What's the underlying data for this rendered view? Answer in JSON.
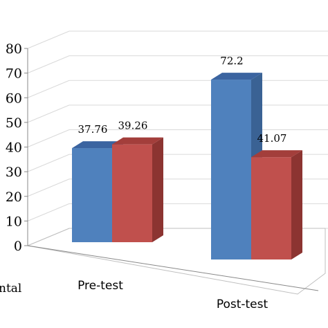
{
  "chart_data": {
    "type": "bar",
    "style": "3d-clustered-column",
    "categories": [
      "Pre-test",
      "Post-test"
    ],
    "series": [
      {
        "values": [
          37.76,
          72.2
        ],
        "color": "#4f81bd",
        "side_color": "#3a6294",
        "top_color": "#3b64a0"
      },
      {
        "values": [
          39.26,
          41.07
        ],
        "color": "#c0504d",
        "side_color": "#8c3431",
        "top_color": "#a33e3b"
      }
    ],
    "data_labels": [
      [
        "37.76",
        "72.2"
      ],
      [
        "39.26",
        "41.07"
      ]
    ],
    "ylim": [
      0,
      80
    ],
    "yticks": [
      "0",
      "10",
      "20",
      "30",
      "40",
      "50",
      "60",
      "70",
      "80"
    ],
    "ytick_labels_visible": [
      "0",
      "10",
      "20",
      "30",
      "40",
      "50",
      "60",
      "70",
      "80"
    ],
    "grid": true,
    "xlabel": "",
    "ylabel": "",
    "partial_left_text": "ntal",
    "cropped": true
  }
}
